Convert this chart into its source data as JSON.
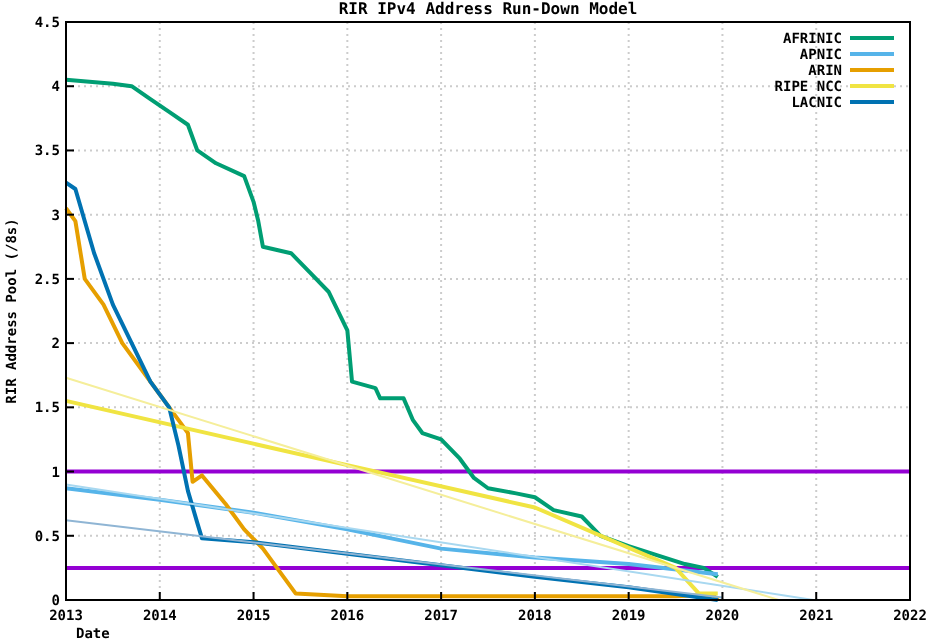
{
  "chart_data": {
    "type": "line",
    "title": "RIR IPv4 Address Run-Down Model",
    "xlabel": "Date",
    "ylabel": "RIR Address Pool (/8s)",
    "xlim": [
      2013,
      2022
    ],
    "xticks": [
      2013,
      2014,
      2015,
      2016,
      2017,
      2018,
      2019,
      2020,
      2021,
      2022
    ],
    "ylim": [
      0,
      4.5
    ],
    "yticks": [
      0,
      {
        "value": 0.5,
        "label": "0.5"
      },
      1,
      {
        "value": 1.5,
        "label": "1.5"
      },
      2,
      {
        "value": 2.5,
        "label": "2.5"
      },
      3,
      {
        "value": 3.5,
        "label": "3.5"
      },
      4,
      {
        "value": 4.5,
        "label": "4.5"
      }
    ],
    "grid": true,
    "legend": "top right",
    "line_style": "solid",
    "marker": "none",
    "series": [
      {
        "name": "AFRINIC",
        "color": "#009e73",
        "x": [
          2013,
          2013.5,
          2013.7,
          2013.9,
          2014.1,
          2014.3,
          2014.4,
          2014.6,
          2014.9,
          2015.0,
          2015.05,
          2015.1,
          2015.4,
          2015.6,
          2015.8,
          2016.0,
          2016.05,
          2016.3,
          2016.35,
          2016.6,
          2016.7,
          2016.8,
          2017.0,
          2017.2,
          2017.35,
          2017.5,
          2017.8,
          2018.0,
          2018.2,
          2018.5,
          2018.7,
          2019.0,
          2019.3,
          2019.6,
          2019.8,
          2019.95
        ],
        "values": [
          4.05,
          4.02,
          4.0,
          3.9,
          3.8,
          3.7,
          3.5,
          3.4,
          3.3,
          3.1,
          2.95,
          2.75,
          2.7,
          2.55,
          2.4,
          2.1,
          1.7,
          1.65,
          1.57,
          1.57,
          1.4,
          1.3,
          1.25,
          1.1,
          0.95,
          0.87,
          0.83,
          0.8,
          0.7,
          0.65,
          0.5,
          0.42,
          0.35,
          0.28,
          0.25,
          0.18
        ]
      },
      {
        "name": "APNIC",
        "color": "#56b4e9",
        "x": [
          2013,
          2014,
          2015,
          2016,
          2017,
          2018,
          2019,
          2019.95
        ],
        "values": [
          0.87,
          0.78,
          0.68,
          0.55,
          0.4,
          0.33,
          0.28,
          0.2
        ]
      },
      {
        "name": "ARIN",
        "color": "#e69f00",
        "x": [
          2013,
          2013.1,
          2013.2,
          2013.4,
          2013.6,
          2013.8,
          2014.0,
          2014.2,
          2014.3,
          2014.35,
          2014.45,
          2014.7,
          2014.9,
          2015.1,
          2015.3,
          2015.45,
          2016,
          2018,
          2019.5,
          2019.9,
          2019.95
        ],
        "values": [
          3.05,
          2.95,
          2.5,
          2.3,
          2.0,
          1.8,
          1.6,
          1.4,
          1.3,
          0.92,
          0.97,
          0.75,
          0.55,
          0.4,
          0.2,
          0.05,
          0.03,
          0.03,
          0.03,
          0.04,
          0
        ]
      },
      {
        "name": "RIPE NCC",
        "color": "#f0e442",
        "x": [
          2013,
          2016,
          2018,
          2019.5,
          2019.75,
          2019.95
        ],
        "values": [
          1.55,
          1.05,
          0.72,
          0.25,
          0.05,
          0.05
        ]
      },
      {
        "name": "LACNIC",
        "color": "#0072b2",
        "x": [
          2013,
          2013.1,
          2013.3,
          2013.5,
          2013.7,
          2013.9,
          2014.1,
          2014.2,
          2014.3,
          2014.4,
          2014.45,
          2015,
          2016,
          2017,
          2018,
          2019,
          2019.95
        ],
        "values": [
          3.25,
          3.2,
          2.7,
          2.3,
          2.0,
          1.7,
          1.5,
          1.2,
          0.85,
          0.6,
          0.48,
          0.45,
          0.36,
          0.27,
          0.18,
          0.1,
          0
        ]
      },
      {
        "color": "#a8d8f0",
        "x": [
          2013,
          2020.97
        ],
        "values": [
          0.9,
          0
        ]
      },
      {
        "color": "#f5ee9a",
        "x": [
          2013,
          2020.6
        ],
        "values": [
          1.73,
          0
        ]
      },
      {
        "color": "#8fb5d4",
        "x": [
          2013,
          2020
        ],
        "values": [
          0.62,
          0.02
        ]
      }
    ],
    "ref_lines": [
      {
        "axis": "y",
        "value": 1,
        "color": "#9400d3"
      },
      {
        "axis": "y",
        "value": 0.25,
        "color": "#9400d3"
      }
    ]
  }
}
